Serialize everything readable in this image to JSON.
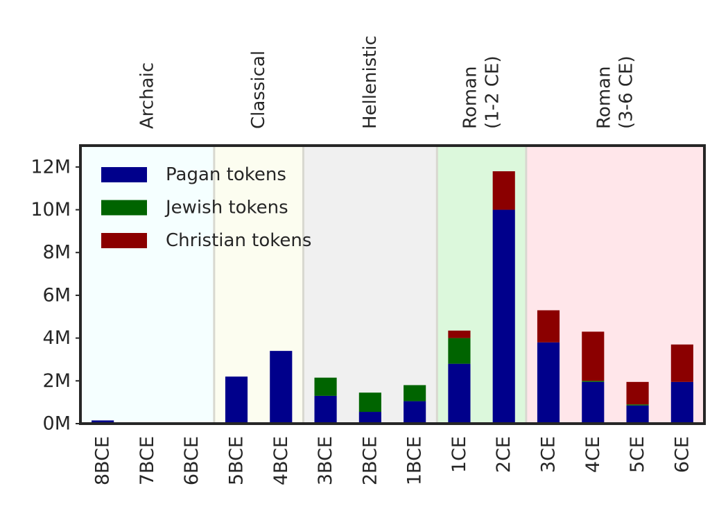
{
  "chart_data": {
    "type": "bar",
    "stacked": true,
    "categories": [
      "8BCE",
      "7BCE",
      "6BCE",
      "5BCE",
      "4BCE",
      "3BCE",
      "2BCE",
      "1BCE",
      "1CE",
      "2CE",
      "3CE",
      "4CE",
      "5CE",
      "6CE"
    ],
    "series": [
      {
        "name": "Pagan tokens",
        "color": "#00008b",
        "values": [
          0.15,
          0.0,
          0.05,
          2.2,
          3.4,
          1.3,
          0.55,
          1.05,
          2.8,
          10.0,
          3.8,
          1.95,
          0.85,
          1.95
        ]
      },
      {
        "name": "Jewish tokens",
        "color": "#006400",
        "values": [
          0.0,
          0.0,
          0.0,
          0.0,
          0.0,
          0.85,
          0.9,
          0.75,
          1.2,
          0.0,
          0.0,
          0.05,
          0.05,
          0.0
        ]
      },
      {
        "name": "Christian tokens",
        "color": "#8b0000",
        "values": [
          0.0,
          0.0,
          0.0,
          0.0,
          0.0,
          0.0,
          0.0,
          0.0,
          0.35,
          1.8,
          1.5,
          2.3,
          1.05,
          1.75
        ]
      }
    ],
    "value_unit": "M",
    "ylim": [
      0,
      13
    ],
    "yticks": [
      0,
      2,
      4,
      6,
      8,
      10,
      12
    ],
    "ytick_labels": [
      "0M",
      "2M",
      "4M",
      "6M",
      "8M",
      "10M",
      "12M"
    ],
    "grid": false,
    "legend_position": "top-left",
    "periods": [
      {
        "label": [
          "Archaic"
        ],
        "start_index": 0,
        "end_index": 2,
        "color": "#f5ffff"
      },
      {
        "label": [
          "Classical"
        ],
        "start_index": 3,
        "end_index": 4,
        "color": "#fcfdf0"
      },
      {
        "label": [
          "Hellenistic"
        ],
        "start_index": 5,
        "end_index": 7,
        "color": "#f0f0f0"
      },
      {
        "label": [
          "Roman",
          "(1-2 CE)"
        ],
        "start_index": 8,
        "end_index": 9,
        "color": "#dcf8dc"
      },
      {
        "label": [
          "Roman",
          "(3-6 CE)"
        ],
        "start_index": 10,
        "end_index": 13,
        "color": "#ffe6ea"
      }
    ]
  }
}
